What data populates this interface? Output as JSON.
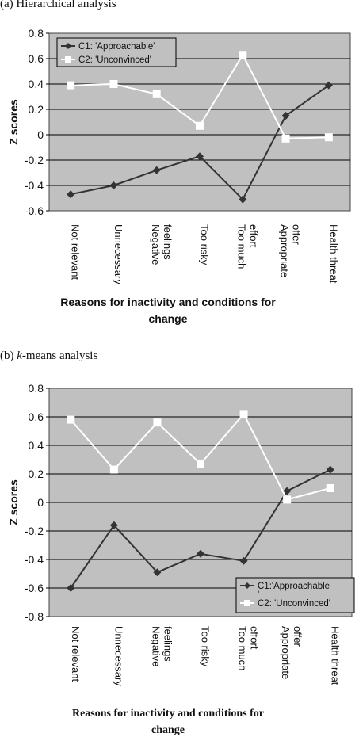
{
  "panel_a": {
    "title_prefix": "(a) Hierarchical analysis",
    "title_italic": "",
    "title_suffix": ""
  },
  "panel_b": {
    "title_prefix": "(b) ",
    "title_italic": "k",
    "title_suffix": "-means analysis"
  },
  "colors": {
    "plot_bg": "#c0c0c0",
    "c1_line": "#333333",
    "c2_line": "#ffffff",
    "grid": "#000000"
  },
  "chart_data": [
    {
      "type": "line",
      "title": "(a) Hierarchical analysis",
      "categories": [
        "Not relevant",
        "Unnecessary",
        "Negative feelings",
        "Too risky",
        "Too much effort",
        "Appropriate offer",
        "Health threat"
      ],
      "category_lines": [
        [
          "Not relevant"
        ],
        [
          "Unnecessary"
        ],
        [
          "Negative",
          "feelings"
        ],
        [
          "Too risky"
        ],
        [
          "Too much",
          "effort"
        ],
        [
          "Appropriate",
          "offer"
        ],
        [
          "Health threat"
        ]
      ],
      "series": [
        {
          "name": "C1: 'Approachable'",
          "marker": "diamond",
          "values": [
            -0.47,
            -0.4,
            -0.28,
            -0.17,
            -0.51,
            0.15,
            0.39
          ]
        },
        {
          "name": "C2: 'Unconvinced'",
          "marker": "square",
          "values": [
            0.39,
            0.4,
            0.32,
            0.07,
            0.63,
            -0.03,
            -0.02
          ]
        }
      ],
      "xlabel_lines": [
        "Reasons for inactivity and conditions for",
        "change"
      ],
      "ylabel": "Z scores",
      "ylim": [
        -0.6,
        0.8
      ],
      "yticks": [
        "0.8",
        "0.6",
        "0.4",
        "0.2",
        "0",
        "-0.2",
        "-0.4",
        "-0.6"
      ],
      "ytick_values": [
        0.8,
        0.6,
        0.4,
        0.2,
        0,
        -0.2,
        -0.4,
        -0.6
      ],
      "grid": true,
      "legend_position": "top-left",
      "legend_lines": [
        [
          "C1: 'Approachable'"
        ],
        [
          "C2: 'Unconvinced'"
        ]
      ]
    },
    {
      "type": "line",
      "title": "(b) k-means analysis",
      "categories": [
        "Not relevant",
        "Unnecessary",
        "Negative feelings",
        "Too risky",
        "Too much effort",
        "Appropriate offer",
        "Health threat"
      ],
      "category_lines": [
        [
          "Not relevant"
        ],
        [
          "Unnecessary"
        ],
        [
          "Negative",
          "feelings"
        ],
        [
          "Too risky"
        ],
        [
          "Too much",
          "effort"
        ],
        [
          "Appropriate",
          "offer"
        ],
        [
          "Health threat"
        ]
      ],
      "series": [
        {
          "name": "C1:'Approachable'",
          "marker": "diamond",
          "values": [
            -0.6,
            -0.16,
            -0.49,
            -0.36,
            -0.41,
            0.08,
            0.23
          ]
        },
        {
          "name": "C2: 'Unconvinced'",
          "marker": "square",
          "values": [
            0.58,
            0.23,
            0.56,
            0.27,
            0.62,
            0.02,
            0.1
          ]
        }
      ],
      "xlabel_lines": [
        "Reasons for inactivity and conditions for",
        "change"
      ],
      "ylabel": "Z scores",
      "ylim": [
        -0.8,
        0.8
      ],
      "yticks": [
        "0.8",
        "0.6",
        "0.4",
        "0.2",
        "0",
        "-0.2",
        "-0.4",
        "-0.6",
        "-0.8"
      ],
      "ytick_values": [
        0.8,
        0.6,
        0.4,
        0.2,
        0,
        -0.2,
        -0.4,
        -0.6,
        -0.8
      ],
      "grid": true,
      "legend_position": "bottom-right",
      "legend_lines": [
        [
          "C1:'Approachable",
          "'"
        ],
        [
          "C2: 'Unconvinced'"
        ]
      ]
    }
  ]
}
